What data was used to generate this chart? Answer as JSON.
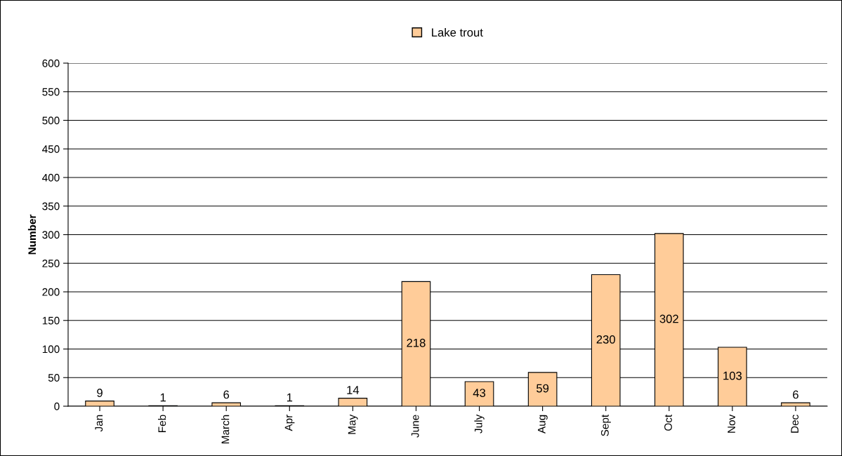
{
  "chart_data": {
    "type": "bar",
    "ylabel": "Number",
    "categories": [
      "Jan",
      "Feb",
      "March",
      "Apr",
      "May",
      "June",
      "July",
      "Aug",
      "Sept",
      "Oct",
      "Nov",
      "Dec"
    ],
    "series": [
      {
        "name": "Lake trout",
        "color": "#ffcc99",
        "values": [
          9,
          1,
          6,
          1,
          14,
          218,
          43,
          59,
          230,
          302,
          103,
          6
        ]
      }
    ],
    "ylim": [
      0,
      600
    ],
    "yticks": [
      0,
      50,
      100,
      150,
      200,
      250,
      300,
      350,
      400,
      450,
      500,
      550,
      600
    ],
    "grid": "y",
    "legend": "top",
    "data_labels": true
  }
}
